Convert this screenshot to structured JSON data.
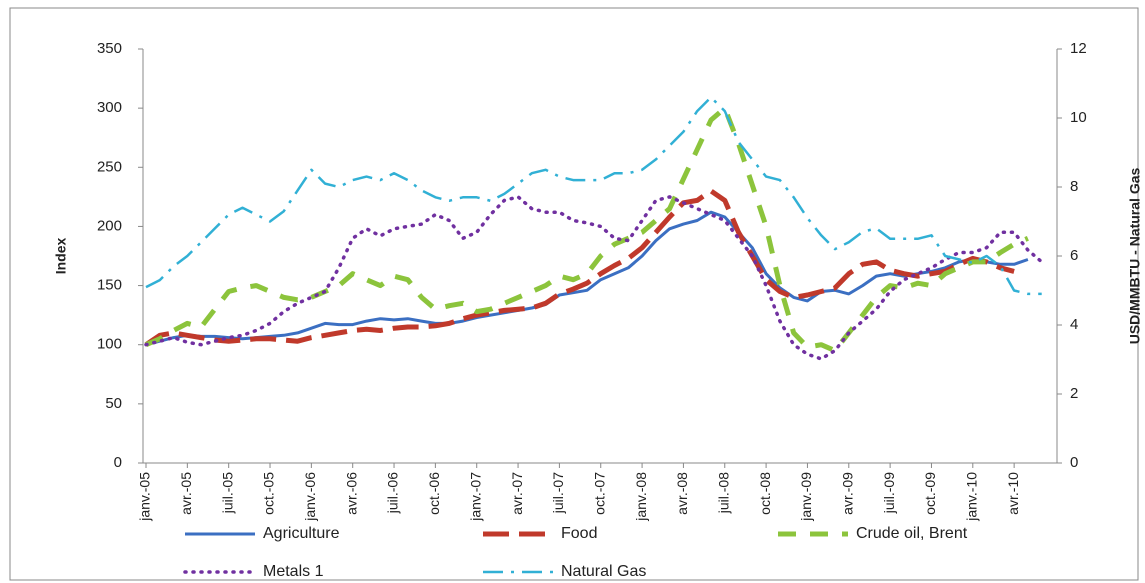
{
  "chart_data": {
    "type": "line",
    "ylabel": "Index",
    "y2label": "USD/MMBTU - Natural Gas",
    "categories": [
      "janv.-05",
      null,
      null,
      "avr.-05",
      null,
      null,
      "juil.-05",
      null,
      null,
      "oct.-05",
      null,
      null,
      "janv.-06",
      null,
      null,
      "avr.-06",
      null,
      null,
      "juil.-06",
      null,
      null,
      "oct.-06",
      null,
      null,
      "janv.-07",
      null,
      null,
      "avr.-07",
      null,
      null,
      "juil.-07",
      null,
      null,
      "oct.-07",
      null,
      null,
      "janv.-08",
      null,
      null,
      "avr.-08",
      null,
      null,
      "juil.-08",
      null,
      null,
      "oct.-08",
      null,
      null,
      "janv.-09",
      null,
      null,
      "avr.-09",
      null,
      null,
      "juil.-09",
      null,
      null,
      "oct.-09",
      null,
      null,
      "janv.-10",
      null,
      null,
      "avr.-10",
      null,
      null
    ],
    "ylim": [
      0,
      350
    ],
    "yticks": [
      0,
      50,
      100,
      150,
      200,
      250,
      300,
      350
    ],
    "y2lim": [
      0,
      12
    ],
    "y2ticks": [
      0,
      2,
      4,
      6,
      8,
      10,
      12
    ],
    "grid": false,
    "legend": "bottom",
    "series": [
      {
        "name": "Agriculture",
        "color": "#3b6fc2",
        "values": [
          100,
          103,
          106,
          108,
          107,
          107,
          106,
          105,
          106,
          107,
          108,
          110,
          114,
          118,
          117,
          117,
          120,
          122,
          121,
          122,
          120,
          118,
          118,
          120,
          123,
          125,
          127,
          129,
          131,
          134,
          142,
          144,
          146,
          155,
          160,
          165,
          175,
          188,
          198,
          202,
          205,
          212,
          208,
          195,
          182,
          160,
          148,
          140,
          137,
          145,
          146,
          143,
          150,
          158,
          160,
          158,
          160,
          162,
          165,
          170,
          172,
          170,
          168,
          168,
          172,
          null
        ]
      },
      {
        "name": "Food",
        "color": "#c0392b",
        "values": [
          100,
          108,
          110,
          108,
          106,
          104,
          103,
          104,
          105,
          105,
          104,
          103,
          106,
          108,
          110,
          112,
          113,
          112,
          114,
          115,
          115,
          116,
          118,
          122,
          125,
          127,
          129,
          130,
          131,
          135,
          143,
          147,
          152,
          160,
          167,
          173,
          182,
          195,
          208,
          220,
          222,
          230,
          222,
          195,
          175,
          155,
          145,
          140,
          142,
          145,
          148,
          160,
          168,
          170,
          163,
          160,
          158,
          160,
          162,
          168,
          173,
          170,
          165,
          162,
          null,
          null
        ]
      },
      {
        "name": "Crude oil, Brent",
        "color": "#8cc43c",
        "values": [
          100,
          105,
          112,
          118,
          115,
          130,
          145,
          148,
          150,
          145,
          140,
          138,
          140,
          145,
          150,
          160,
          155,
          150,
          158,
          155,
          140,
          130,
          133,
          135,
          128,
          130,
          135,
          140,
          145,
          150,
          158,
          155,
          160,
          175,
          185,
          190,
          195,
          205,
          215,
          240,
          265,
          290,
          300,
          270,
          235,
          200,
          150,
          110,
          98,
          100,
          95,
          110,
          125,
          140,
          150,
          148,
          152,
          150,
          160,
          165,
          170,
          170,
          178,
          185,
          190,
          null
        ]
      },
      {
        "name": "Metals 1",
        "color": "#7030a0",
        "values": [
          100,
          103,
          106,
          102,
          100,
          103,
          106,
          108,
          112,
          118,
          128,
          135,
          140,
          145,
          165,
          190,
          198,
          192,
          198,
          200,
          202,
          210,
          205,
          190,
          195,
          210,
          222,
          225,
          215,
          212,
          212,
          205,
          203,
          200,
          190,
          188,
          205,
          222,
          225,
          220,
          215,
          210,
          205,
          190,
          175,
          150,
          120,
          100,
          92,
          88,
          95,
          110,
          120,
          130,
          145,
          155,
          160,
          165,
          172,
          178,
          178,
          182,
          195,
          195,
          180,
          170
        ]
      },
      {
        "name": "Natural Gas",
        "color": "#31b0d5",
        "axis": "y2",
        "values": [
          5.1,
          5.3,
          5.7,
          6.0,
          6.4,
          6.8,
          7.2,
          7.4,
          7.2,
          7.0,
          7.3,
          7.9,
          8.5,
          8.1,
          8.0,
          8.2,
          8.3,
          8.2,
          8.4,
          8.2,
          7.9,
          7.7,
          7.6,
          7.7,
          7.7,
          7.6,
          7.8,
          8.1,
          8.4,
          8.5,
          8.3,
          8.2,
          8.2,
          8.2,
          8.4,
          8.4,
          8.5,
          8.8,
          9.2,
          9.6,
          10.2,
          10.6,
          10.2,
          9.3,
          8.8,
          8.3,
          8.2,
          7.7,
          7.1,
          6.6,
          6.2,
          6.4,
          6.7,
          6.8,
          6.5,
          6.5,
          6.5,
          6.6,
          6.0,
          5.9,
          5.8,
          6.0,
          5.7,
          5.0,
          4.9,
          4.9
        ]
      }
    ]
  }
}
